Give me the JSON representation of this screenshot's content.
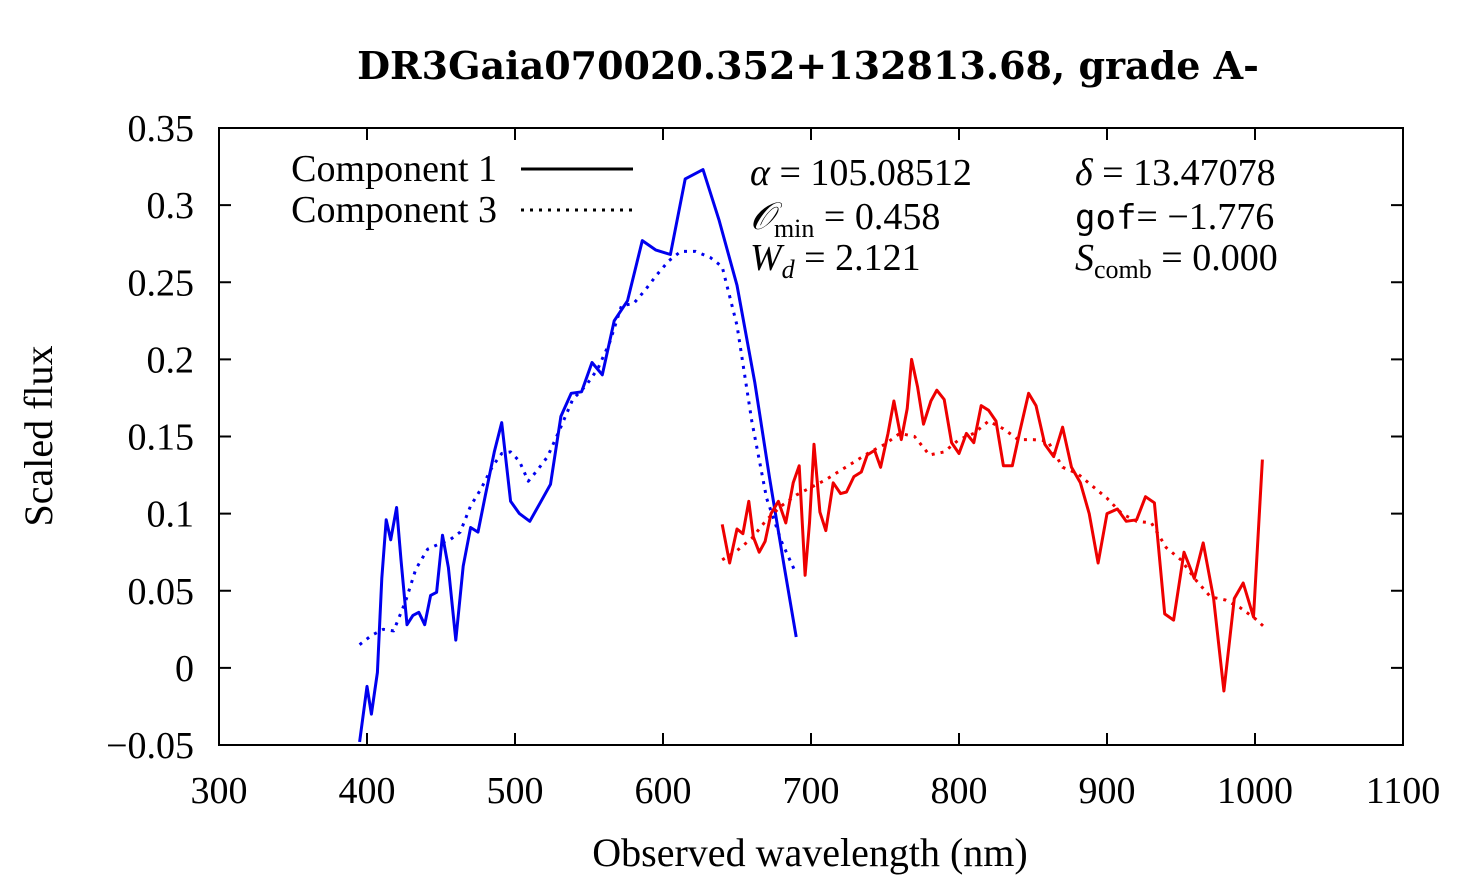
{
  "chart_data": {
    "type": "line",
    "title": "DR3Gaia070020.352+132813.68, grade A-",
    "xlabel": "Observed wavelength (nm)",
    "ylabel": "Scaled flux",
    "xlim": [
      300,
      1100
    ],
    "ylim": [
      -0.05,
      0.35
    ],
    "xticks": [
      300,
      400,
      500,
      600,
      700,
      800,
      900,
      1000,
      1100
    ],
    "yticks": [
      -0.05,
      0,
      0.05,
      0.1,
      0.15,
      0.2,
      0.25,
      0.3,
      0.35
    ],
    "xtick_labels": [
      "300",
      "400",
      "500",
      "600",
      "700",
      "800",
      "900",
      "1000",
      "1100"
    ],
    "ytick_labels": [
      "−0.05",
      "0",
      "0.05",
      "0.1",
      "0.15",
      "0.2",
      "0.25",
      "0.3",
      "0.35"
    ],
    "grid": false,
    "legend": {
      "position": "top-left",
      "entries": [
        {
          "label": "Component 1",
          "style": "solid",
          "color": "#000000"
        },
        {
          "label": "Component 3",
          "style": "dotted",
          "color": "#000000"
        }
      ]
    },
    "annotations": {
      "alpha": {
        "symbol": "α",
        "value": "105.08512"
      },
      "delta": {
        "symbol": "δ",
        "value": "13.47078"
      },
      "omin": {
        "symbol": "𝒪",
        "sub": "min",
        "value": "0.458"
      },
      "gof": {
        "symbol": "gof",
        "value": "−1.776"
      },
      "wd": {
        "symbol": "W",
        "sub": "d",
        "value": "2.121"
      },
      "scomb": {
        "symbol": "S",
        "sub": "comb",
        "value": "0.000"
      }
    },
    "series": [
      {
        "component": "Component 1",
        "band": "blue",
        "color": "#0000ee",
        "style": "solid",
        "points": [
          [
            395,
            -0.048
          ],
          [
            400,
            -0.012
          ],
          [
            403,
            -0.03
          ],
          [
            407,
            -0.003
          ],
          [
            410,
            0.058
          ],
          [
            413,
            0.096
          ],
          [
            416,
            0.083
          ],
          [
            420,
            0.104
          ],
          [
            423,
            0.07
          ],
          [
            427,
            0.028
          ],
          [
            431,
            0.034
          ],
          [
            435,
            0.036
          ],
          [
            439,
            0.028
          ],
          [
            443,
            0.047
          ],
          [
            447,
            0.049
          ],
          [
            451,
            0.086
          ],
          [
            455,
            0.065
          ],
          [
            460,
            0.018
          ],
          [
            465,
            0.066
          ],
          [
            470,
            0.091
          ],
          [
            475,
            0.088
          ],
          [
            480,
            0.112
          ],
          [
            486,
            0.14
          ],
          [
            491,
            0.159
          ],
          [
            497,
            0.108
          ],
          [
            503,
            0.1
          ],
          [
            510,
            0.095
          ],
          [
            517,
            0.107
          ],
          [
            524,
            0.119
          ],
          [
            531,
            0.163
          ],
          [
            538,
            0.178
          ],
          [
            545,
            0.179
          ],
          [
            552,
            0.198
          ],
          [
            559,
            0.19
          ],
          [
            567,
            0.225
          ],
          [
            576,
            0.238
          ],
          [
            586,
            0.277
          ],
          [
            595,
            0.271
          ],
          [
            605,
            0.268
          ],
          [
            615,
            0.317
          ],
          [
            627,
            0.323
          ],
          [
            638,
            0.29
          ],
          [
            650,
            0.248
          ],
          [
            662,
            0.185
          ],
          [
            672,
            0.123
          ],
          [
            682,
            0.065
          ],
          [
            690,
            0.02
          ]
        ]
      },
      {
        "component": "Component 3",
        "band": "blue",
        "color": "#0000ee",
        "style": "dotted",
        "points": [
          [
            395,
            0.015
          ],
          [
            403,
            0.021
          ],
          [
            411,
            0.025
          ],
          [
            418,
            0.024
          ],
          [
            426,
            0.043
          ],
          [
            433,
            0.064
          ],
          [
            441,
            0.077
          ],
          [
            448,
            0.08
          ],
          [
            456,
            0.083
          ],
          [
            463,
            0.088
          ],
          [
            470,
            0.105
          ],
          [
            477,
            0.116
          ],
          [
            485,
            0.131
          ],
          [
            491,
            0.139
          ],
          [
            497,
            0.14
          ],
          [
            503,
            0.134
          ],
          [
            509,
            0.121
          ],
          [
            515,
            0.128
          ],
          [
            522,
            0.137
          ],
          [
            530,
            0.154
          ],
          [
            539,
            0.174
          ],
          [
            548,
            0.183
          ],
          [
            556,
            0.194
          ],
          [
            564,
            0.211
          ],
          [
            572,
            0.235
          ],
          [
            580,
            0.236
          ],
          [
            588,
            0.245
          ],
          [
            596,
            0.255
          ],
          [
            604,
            0.264
          ],
          [
            612,
            0.27
          ],
          [
            622,
            0.27
          ],
          [
            632,
            0.266
          ],
          [
            640,
            0.26
          ],
          [
            650,
            0.222
          ],
          [
            660,
            0.16
          ],
          [
            670,
            0.11
          ],
          [
            680,
            0.082
          ],
          [
            690,
            0.061
          ]
        ]
      },
      {
        "component": "Component 1",
        "band": "red",
        "color": "#ee0000",
        "style": "solid",
        "points": [
          [
            640,
            0.093
          ],
          [
            645,
            0.068
          ],
          [
            650,
            0.09
          ],
          [
            654,
            0.087
          ],
          [
            658,
            0.108
          ],
          [
            661,
            0.085
          ],
          [
            665,
            0.075
          ],
          [
            669,
            0.082
          ],
          [
            673,
            0.1
          ],
          [
            678,
            0.108
          ],
          [
            683,
            0.094
          ],
          [
            688,
            0.12
          ],
          [
            692,
            0.131
          ],
          [
            696,
            0.06
          ],
          [
            699,
            0.094
          ],
          [
            702,
            0.145
          ],
          [
            706,
            0.101
          ],
          [
            710,
            0.089
          ],
          [
            715,
            0.12
          ],
          [
            720,
            0.113
          ],
          [
            724,
            0.114
          ],
          [
            729,
            0.124
          ],
          [
            734,
            0.127
          ],
          [
            738,
            0.138
          ],
          [
            743,
            0.141
          ],
          [
            747,
            0.13
          ],
          [
            752,
            0.152
          ],
          [
            756,
            0.173
          ],
          [
            761,
            0.148
          ],
          [
            765,
            0.168
          ],
          [
            768,
            0.2
          ],
          [
            772,
            0.182
          ],
          [
            776,
            0.158
          ],
          [
            781,
            0.173
          ],
          [
            785,
            0.18
          ],
          [
            790,
            0.174
          ],
          [
            795,
            0.146
          ],
          [
            800,
            0.139
          ],
          [
            805,
            0.152
          ],
          [
            810,
            0.146
          ],
          [
            815,
            0.17
          ],
          [
            820,
            0.167
          ],
          [
            825,
            0.16
          ],
          [
            830,
            0.131
          ],
          [
            836,
            0.131
          ],
          [
            841,
            0.153
          ],
          [
            847,
            0.178
          ],
          [
            852,
            0.17
          ],
          [
            858,
            0.145
          ],
          [
            864,
            0.137
          ],
          [
            870,
            0.156
          ],
          [
            876,
            0.13
          ],
          [
            882,
            0.12
          ],
          [
            888,
            0.1
          ],
          [
            894,
            0.068
          ],
          [
            900,
            0.1
          ],
          [
            907,
            0.103
          ],
          [
            913,
            0.095
          ],
          [
            920,
            0.096
          ],
          [
            926,
            0.111
          ],
          [
            932,
            0.107
          ],
          [
            939,
            0.035
          ],
          [
            945,
            0.031
          ],
          [
            952,
            0.075
          ],
          [
            959,
            0.058
          ],
          [
            965,
            0.081
          ],
          [
            972,
            0.045
          ],
          [
            979,
            -0.015
          ],
          [
            986,
            0.045
          ],
          [
            992,
            0.055
          ],
          [
            999,
            0.033
          ],
          [
            1005,
            0.135
          ]
        ]
      },
      {
        "component": "Component 3",
        "band": "red",
        "color": "#ee0000",
        "style": "dotted",
        "points": [
          [
            640,
            0.07
          ],
          [
            650,
            0.076
          ],
          [
            660,
            0.084
          ],
          [
            670,
            0.096
          ],
          [
            680,
            0.105
          ],
          [
            690,
            0.112
          ],
          [
            700,
            0.117
          ],
          [
            710,
            0.122
          ],
          [
            720,
            0.128
          ],
          [
            730,
            0.134
          ],
          [
            740,
            0.14
          ],
          [
            750,
            0.145
          ],
          [
            760,
            0.152
          ],
          [
            770,
            0.15
          ],
          [
            780,
            0.138
          ],
          [
            790,
            0.14
          ],
          [
            800,
            0.148
          ],
          [
            810,
            0.152
          ],
          [
            820,
            0.16
          ],
          [
            830,
            0.155
          ],
          [
            840,
            0.148
          ],
          [
            850,
            0.148
          ],
          [
            860,
            0.147
          ],
          [
            870,
            0.13
          ],
          [
            880,
            0.126
          ],
          [
            890,
            0.118
          ],
          [
            900,
            0.11
          ],
          [
            910,
            0.1
          ],
          [
            920,
            0.095
          ],
          [
            930,
            0.094
          ],
          [
            940,
            0.078
          ],
          [
            950,
            0.07
          ],
          [
            960,
            0.057
          ],
          [
            970,
            0.046
          ],
          [
            980,
            0.044
          ],
          [
            990,
            0.039
          ],
          [
            1000,
            0.032
          ],
          [
            1008,
            0.025
          ]
        ]
      }
    ]
  }
}
